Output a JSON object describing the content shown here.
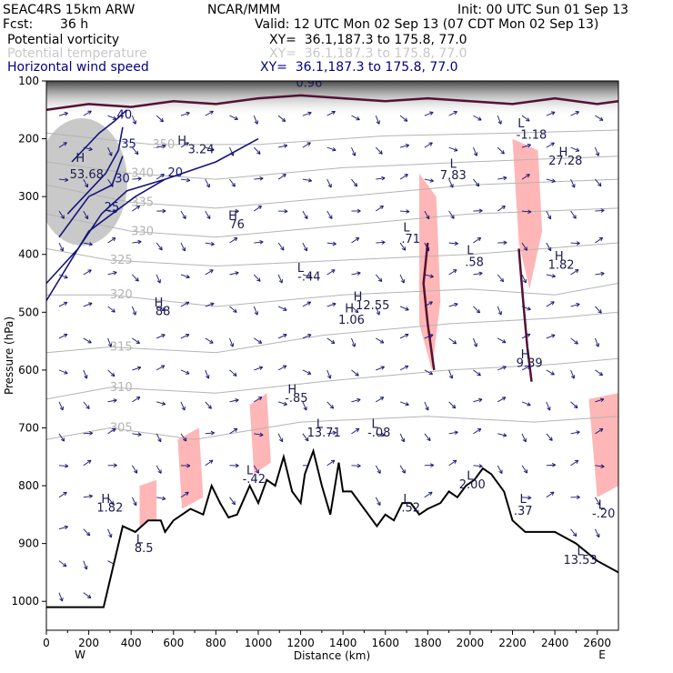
{
  "header": {
    "model": "SEAC4RS 15km ARW",
    "org": "NCAR/MMM",
    "init": "Init: 00 UTC Sun 01 Sep 13",
    "fcst_label": "Fcst:",
    "fcst_value": "36 h",
    "valid": "Valid: 12 UTC Mon 02 Sep 13 (07 CDT Mon 02 Sep 13)",
    "fields": [
      {
        "name": "Potential vorticity",
        "xy": "XY=  36.1,187.3 to 175.8, 77.0",
        "color": "#000000"
      },
      {
        "name": "Potential temperature",
        "xy": "XY=  36.1,187.3 to 175.8, 77.0",
        "color": "#c8c8c8"
      },
      {
        "name": "Horizontal wind speed",
        "xy": "XY=  36.1,187.3 to 175.8, 77.0",
        "color": "#000080"
      }
    ]
  },
  "colors": {
    "pv": "#551133",
    "theta": "#b4b4b4",
    "wind": "#14147a",
    "shading": "#ffb6b6",
    "terrain": "#000000"
  },
  "chart_data": {
    "type": "cross-section",
    "xlabel": "Distance (km)",
    "ylabel": "Pressure (hPa)",
    "xlim": [
      0,
      2700
    ],
    "ylim": [
      1050,
      100
    ],
    "x_ticks": [
      0,
      200,
      400,
      600,
      800,
      1000,
      1200,
      1400,
      1600,
      1800,
      2000,
      2200,
      2400,
      2600
    ],
    "y_ticks": [
      100,
      200,
      300,
      400,
      500,
      600,
      700,
      800,
      900,
      1000
    ],
    "x_end_labels": {
      "left": "W",
      "right": "E"
    },
    "terrain": [
      [
        0,
        1010
      ],
      [
        270,
        1010
      ],
      [
        360,
        870
      ],
      [
        420,
        880
      ],
      [
        480,
        860
      ],
      [
        540,
        860
      ],
      [
        560,
        880
      ],
      [
        600,
        860
      ],
      [
        680,
        840
      ],
      [
        740,
        850
      ],
      [
        780,
        800
      ],
      [
        820,
        830
      ],
      [
        860,
        855
      ],
      [
        900,
        850
      ],
      [
        960,
        800
      ],
      [
        1000,
        830
      ],
      [
        1040,
        790
      ],
      [
        1080,
        800
      ],
      [
        1120,
        750
      ],
      [
        1160,
        810
      ],
      [
        1200,
        830
      ],
      [
        1220,
        780
      ],
      [
        1260,
        740
      ],
      [
        1300,
        800
      ],
      [
        1340,
        850
      ],
      [
        1380,
        760
      ],
      [
        1400,
        810
      ],
      [
        1440,
        810
      ],
      [
        1480,
        830
      ],
      [
        1520,
        850
      ],
      [
        1560,
        870
      ],
      [
        1600,
        850
      ],
      [
        1640,
        860
      ],
      [
        1680,
        830
      ],
      [
        1720,
        830
      ],
      [
        1760,
        850
      ],
      [
        1800,
        840
      ],
      [
        1860,
        830
      ],
      [
        1900,
        810
      ],
      [
        1940,
        820
      ],
      [
        1980,
        800
      ],
      [
        2020,
        790
      ],
      [
        2060,
        770
      ],
      [
        2100,
        780
      ],
      [
        2160,
        810
      ],
      [
        2200,
        860
      ],
      [
        2260,
        880
      ],
      [
        2320,
        880
      ],
      [
        2400,
        880
      ],
      [
        2500,
        900
      ],
      [
        2600,
        930
      ],
      [
        2700,
        950
      ]
    ],
    "theta_contours": [
      {
        "label": "305",
        "points": [
          [
            0,
            720
          ],
          [
            300,
            700
          ],
          [
            700,
            720
          ],
          [
            1200,
            690
          ],
          [
            1800,
            680
          ],
          [
            2300,
            690
          ],
          [
            2700,
            680
          ]
        ]
      },
      {
        "label": "310",
        "points": [
          [
            0,
            650
          ],
          [
            300,
            630
          ],
          [
            800,
            640
          ],
          [
            1300,
            620
          ],
          [
            1900,
            600
          ],
          [
            2400,
            590
          ],
          [
            2700,
            580
          ]
        ]
      },
      {
        "label": "315",
        "points": [
          [
            0,
            570
          ],
          [
            300,
            560
          ],
          [
            800,
            570
          ],
          [
            1300,
            540
          ],
          [
            1900,
            520
          ],
          [
            2400,
            510
          ],
          [
            2700,
            500
          ]
        ]
      },
      {
        "label": "320",
        "points": [
          [
            0,
            470
          ],
          [
            300,
            470
          ],
          [
            800,
            490
          ],
          [
            1400,
            470
          ],
          [
            2000,
            460
          ],
          [
            2400,
            470
          ],
          [
            2700,
            450
          ]
        ]
      },
      {
        "label": "325",
        "points": [
          [
            0,
            390
          ],
          [
            300,
            410
          ],
          [
            800,
            420
          ],
          [
            1400,
            410
          ],
          [
            2000,
            400
          ],
          [
            2700,
            380
          ]
        ]
      },
      {
        "label": "330",
        "points": [
          [
            0,
            330
          ],
          [
            400,
            360
          ],
          [
            800,
            370
          ],
          [
            1400,
            350
          ],
          [
            2000,
            330
          ],
          [
            2700,
            320
          ]
        ]
      },
      {
        "label": "335",
        "points": [
          [
            0,
            280
          ],
          [
            400,
            310
          ],
          [
            800,
            320
          ],
          [
            1400,
            300
          ],
          [
            2000,
            280
          ],
          [
            2700,
            270
          ]
        ]
      },
      {
        "label": "340",
        "points": [
          [
            0,
            240
          ],
          [
            400,
            260
          ],
          [
            800,
            270
          ],
          [
            1400,
            250
          ],
          [
            2000,
            240
          ],
          [
            2700,
            230
          ]
        ]
      },
      {
        "label": "350",
        "points": [
          [
            0,
            190
          ],
          [
            500,
            210
          ],
          [
            1000,
            210
          ],
          [
            1600,
            195
          ],
          [
            2200,
            190
          ],
          [
            2700,
            185
          ]
        ]
      }
    ],
    "wind_contours": [
      {
        "label": "20",
        "points": [
          [
            0,
            480
          ],
          [
            200,
            360
          ],
          [
            420,
            300
          ],
          [
            560,
            270
          ],
          [
            800,
            240
          ],
          [
            1000,
            200
          ]
        ]
      },
      {
        "label": "25",
        "points": [
          [
            0,
            450
          ],
          [
            150,
            390
          ],
          [
            260,
            330
          ],
          [
            380,
            290
          ],
          [
            560,
            270
          ]
        ]
      },
      {
        "label": "30",
        "points": [
          [
            60,
            370
          ],
          [
            200,
            300
          ],
          [
            310,
            280
          ],
          [
            360,
            230
          ]
        ]
      },
      {
        "label": "35",
        "points": [
          [
            100,
            330
          ],
          [
            280,
            260
          ],
          [
            340,
            220
          ],
          [
            360,
            180
          ]
        ]
      },
      {
        "label": "40",
        "points": [
          [
            120,
            240
          ],
          [
            250,
            190
          ],
          [
            320,
            170
          ],
          [
            380,
            150
          ]
        ]
      }
    ],
    "pv_contours": [
      {
        "points": [
          [
            0,
            150
          ],
          [
            200,
            140
          ],
          [
            400,
            145
          ],
          [
            600,
            135
          ],
          [
            800,
            140
          ],
          [
            1000,
            130
          ],
          [
            1200,
            125
          ],
          [
            1400,
            130
          ],
          [
            1600,
            135
          ],
          [
            1800,
            130
          ],
          [
            2000,
            135
          ],
          [
            2200,
            140
          ],
          [
            2400,
            130
          ],
          [
            2600,
            140
          ],
          [
            2700,
            135
          ]
        ]
      },
      {
        "points": [
          [
            1800,
            380
          ],
          [
            1780,
            450
          ],
          [
            1800,
            520
          ],
          [
            1830,
            600
          ]
        ]
      },
      {
        "points": [
          [
            2230,
            390
          ],
          [
            2250,
            480
          ],
          [
            2270,
            560
          ],
          [
            2290,
            620
          ]
        ]
      }
    ],
    "shaded_regions": [
      {
        "points": [
          [
            1760,
            260
          ],
          [
            1840,
            300
          ],
          [
            1860,
            480
          ],
          [
            1820,
            600
          ],
          [
            1760,
            520
          ]
        ]
      },
      {
        "points": [
          [
            2200,
            200
          ],
          [
            2320,
            220
          ],
          [
            2340,
            360
          ],
          [
            2280,
            460
          ],
          [
            2230,
            380
          ]
        ]
      },
      {
        "points": [
          [
            960,
            660
          ],
          [
            1040,
            640
          ],
          [
            1060,
            760
          ],
          [
            980,
            780
          ]
        ]
      },
      {
        "points": [
          [
            620,
            720
          ],
          [
            720,
            700
          ],
          [
            740,
            820
          ],
          [
            640,
            840
          ]
        ]
      },
      {
        "points": [
          [
            2560,
            650
          ],
          [
            2700,
            640
          ],
          [
            2700,
            800
          ],
          [
            2600,
            820
          ]
        ]
      },
      {
        "points": [
          [
            440,
            800
          ],
          [
            520,
            790
          ],
          [
            520,
            860
          ],
          [
            440,
            870
          ]
        ]
      }
    ],
    "annotations": [
      {
        "text": "H",
        "x": 160,
        "y": 240
      },
      {
        "text": "53.68",
        "x": 190,
        "y": 268
      },
      {
        "text": "H",
        "x": 640,
        "y": 210
      },
      {
        "text": "3.24",
        "x": 730,
        "y": 225
      },
      {
        "text": "H",
        "x": 880,
        "y": 340
      },
      {
        "text": "76",
        "x": 900,
        "y": 355
      },
      {
        "text": "H",
        "x": 530,
        "y": 490
      },
      {
        "text": "88",
        "x": 550,
        "y": 505
      },
      {
        "text": "L",
        "x": 1200,
        "y": 430
      },
      {
        "text": "-.44",
        "x": 1240,
        "y": 445
      },
      {
        "text": "L",
        "x": 1700,
        "y": 360
      },
      {
        "text": ".71",
        "x": 1720,
        "y": 380
      },
      {
        "text": "L",
        "x": 1920,
        "y": 250
      },
      {
        "text": "7.83",
        "x": 1920,
        "y": 270
      },
      {
        "text": "L",
        "x": 2000,
        "y": 400
      },
      {
        "text": ".58",
        "x": 2020,
        "y": 420
      },
      {
        "text": "H",
        "x": 1470,
        "y": 480
      },
      {
        "text": "12.55",
        "x": 1540,
        "y": 495
      },
      {
        "text": "H",
        "x": 1430,
        "y": 500
      },
      {
        "text": "1.06",
        "x": 1440,
        "y": 520
      },
      {
        "text": "H",
        "x": 2440,
        "y": 230
      },
      {
        "text": "27.28",
        "x": 2450,
        "y": 245
      },
      {
        "text": "L",
        "x": 2240,
        "y": 180
      },
      {
        "text": "-1.18",
        "x": 2290,
        "y": 200
      },
      {
        "text": "H",
        "x": 2420,
        "y": 410
      },
      {
        "text": "1.82",
        "x": 2430,
        "y": 425
      },
      {
        "text": "H",
        "x": 2260,
        "y": 580
      },
      {
        "text": "9.39",
        "x": 2280,
        "y": 595
      },
      {
        "text": "H",
        "x": 1160,
        "y": 640
      },
      {
        "text": "-.85",
        "x": 1180,
        "y": 655
      },
      {
        "text": "L",
        "x": 1290,
        "y": 700
      },
      {
        "text": "13.71",
        "x": 1310,
        "y": 715
      },
      {
        "text": "L",
        "x": 1550,
        "y": 700
      },
      {
        "text": "-.08",
        "x": 1570,
        "y": 715
      },
      {
        "text": "L",
        "x": 960,
        "y": 780
      },
      {
        "text": "-.42",
        "x": 980,
        "y": 795
      },
      {
        "text": "H",
        "x": 280,
        "y": 830
      },
      {
        "text": "1.82",
        "x": 300,
        "y": 845
      },
      {
        "text": "L",
        "x": 1700,
        "y": 830
      },
      {
        "text": ".52",
        "x": 1720,
        "y": 845
      },
      {
        "text": "L",
        "x": 2000,
        "y": 790
      },
      {
        "text": "2.00",
        "x": 2010,
        "y": 805
      },
      {
        "text": "L",
        "x": 2250,
        "y": 830
      },
      {
        "text": ".37",
        "x": 2250,
        "y": 850
      },
      {
        "text": "L",
        "x": 2620,
        "y": 840
      },
      {
        "text": "-.20",
        "x": 2630,
        "y": 855
      },
      {
        "text": "L",
        "x": 2520,
        "y": 920
      },
      {
        "text": "13.53",
        "x": 2520,
        "y": 935
      },
      {
        "text": "L",
        "x": 440,
        "y": 900
      },
      {
        "text": "8.5",
        "x": 460,
        "y": 915
      },
      {
        "text": "0.96",
        "x": 1240,
        "y": 110
      }
    ]
  }
}
